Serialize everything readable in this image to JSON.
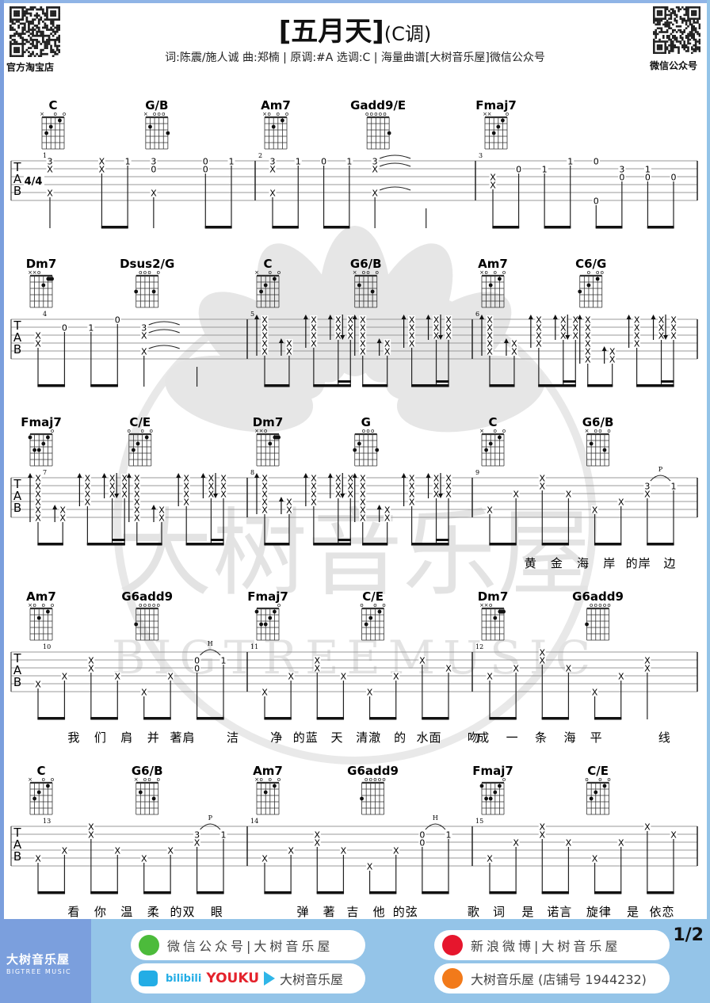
{
  "header": {
    "title": "[五月天]",
    "key_label": "(C调)",
    "subtitle": "词:陈震/施人诚 曲:郑楠 | 原调:#A  选调:C | 海量曲谱[大树音乐屋]微信公众号",
    "qr_left_label": "官方淘宝店",
    "qr_right_label": "微信公众号"
  },
  "watermark": {
    "cn": "大树音乐屋",
    "en": "BIGTREEMUSIC"
  },
  "time_signature": "4/4",
  "tab_clef": [
    "T",
    "A",
    "B"
  ],
  "chord_shapes": {
    "C": {
      "markers": [
        "x",
        "",
        "",
        "o",
        "",
        "o"
      ],
      "dots": [
        [
          5,
          3
        ],
        [
          4,
          2
        ],
        [
          2,
          1
        ]
      ]
    },
    "G/B": {
      "markers": [
        "x",
        "",
        "o",
        "o",
        "o",
        ""
      ],
      "dots": [
        [
          5,
          2
        ],
        [
          1,
          3
        ]
      ]
    },
    "Am7": {
      "markers": [
        "x",
        "o",
        "",
        "o",
        "",
        "o"
      ],
      "dots": [
        [
          4,
          2
        ],
        [
          2,
          1
        ]
      ]
    },
    "Gadd9/E": {
      "markers": [
        "o",
        "o",
        "o",
        "o",
        "o",
        ""
      ],
      "dots": [
        [
          1,
          3
        ]
      ]
    },
    "Fmaj7": {
      "markers": [
        "x",
        "x",
        "",
        "",
        "",
        "o"
      ],
      "dots": [
        [
          4,
          3
        ],
        [
          3,
          2
        ],
        [
          2,
          1
        ]
      ]
    },
    "Fmaj7b": {
      "markers": [
        "",
        "",
        "",
        "",
        "",
        "o"
      ],
      "dots": [
        [
          6,
          1
        ],
        [
          5,
          3
        ],
        [
          4,
          3
        ],
        [
          3,
          2
        ],
        [
          2,
          1
        ]
      ]
    },
    "Dm7": {
      "markers": [
        "x",
        "x",
        "o",
        "",
        "",
        ""
      ],
      "dots": [
        [
          3,
          2
        ]
      ],
      "barre": {
        "fret": 1,
        "from": 2,
        "to": 1
      }
    },
    "Dsus2/G": {
      "markers": [
        "",
        "o",
        "o",
        "o",
        "",
        "o"
      ],
      "dots": [
        [
          6,
          3
        ],
        [
          2,
          3
        ]
      ]
    },
    "G6/B": {
      "markers": [
        "x",
        "",
        "o",
        "o",
        "",
        "o"
      ],
      "dots": [
        [
          5,
          2
        ],
        [
          2,
          3
        ]
      ]
    },
    "C6/G": {
      "markers": [
        "",
        "",
        "o",
        "",
        "o",
        "o"
      ],
      "dots": [
        [
          6,
          3
        ],
        [
          4,
          2
        ],
        [
          2,
          1
        ]
      ]
    },
    "C/E": {
      "markers": [
        "o",
        "",
        "",
        "o",
        "",
        "o"
      ],
      "dots": [
        [
          5,
          3
        ],
        [
          4,
          2
        ],
        [
          2,
          1
        ]
      ]
    },
    "G": {
      "markers": [
        "",
        "",
        "o",
        "o",
        "o",
        ""
      ],
      "dots": [
        [
          6,
          3
        ],
        [
          5,
          2
        ],
        [
          1,
          3
        ]
      ]
    },
    "G6add9": {
      "markers": [
        "",
        "o",
        "o",
        "o",
        "o",
        "o"
      ],
      "dots": [
        [
          6,
          3
        ]
      ]
    }
  },
  "chords": [
    {
      "m": 1,
      "t": 0,
      "name": "C",
      "shape": "C"
    },
    {
      "m": 1,
      "t": 4,
      "name": "G/B",
      "shape": "G/B"
    },
    {
      "m": 2,
      "t": 0,
      "name": "Am7",
      "shape": "Am7"
    },
    {
      "m": 2,
      "t": 4,
      "name": "Gadd9/E",
      "shape": "Gadd9/E"
    },
    {
      "m": 3,
      "t": 0,
      "name": "Fmaj7",
      "shape": "Fmaj7"
    },
    {
      "m": 4,
      "t": 0,
      "name": "Dm7",
      "shape": "Dm7"
    },
    {
      "m": 4,
      "t": 4,
      "name": "Dsus2/G",
      "shape": "Dsus2/G"
    },
    {
      "m": 5,
      "t": 0,
      "name": "C",
      "shape": "C"
    },
    {
      "m": 5,
      "t": 4,
      "name": "G6/B",
      "shape": "G6/B"
    },
    {
      "m": 6,
      "t": 0,
      "name": "Am7",
      "shape": "Am7"
    },
    {
      "m": 6,
      "t": 4,
      "name": "C6/G",
      "shape": "C6/G"
    },
    {
      "m": 7,
      "t": 0,
      "name": "Fmaj7",
      "shape": "Fmaj7b"
    },
    {
      "m": 7,
      "t": 4,
      "name": "C/E",
      "shape": "C/E"
    },
    {
      "m": 8,
      "t": 0,
      "name": "Dm7",
      "shape": "Dm7"
    },
    {
      "m": 8,
      "t": 4,
      "name": "G",
      "shape": "G"
    },
    {
      "m": 9,
      "t": 0,
      "name": "C",
      "shape": "C"
    },
    {
      "m": 9,
      "t": 4,
      "name": "G6/B",
      "shape": "G6/B"
    },
    {
      "m": 10,
      "t": 0,
      "name": "Am7",
      "shape": "Am7"
    },
    {
      "m": 10,
      "t": 4,
      "name": "G6add9",
      "shape": "G6add9"
    },
    {
      "m": 11,
      "t": 0,
      "name": "Fmaj7",
      "shape": "Fmaj7b"
    },
    {
      "m": 11,
      "t": 4,
      "name": "C/E",
      "shape": "C/E"
    },
    {
      "m": 12,
      "t": 0,
      "name": "Dm7",
      "shape": "Dm7"
    },
    {
      "m": 12,
      "t": 4,
      "name": "G6add9",
      "shape": "G6add9"
    },
    {
      "m": 13,
      "t": 0,
      "name": "C",
      "shape": "C"
    },
    {
      "m": 13,
      "t": 4,
      "name": "G6/B",
      "shape": "G6/B"
    },
    {
      "m": 14,
      "t": 0,
      "name": "Am7",
      "shape": "Am7"
    },
    {
      "m": 14,
      "t": 4,
      "name": "G6add9",
      "shape": "G6add9"
    },
    {
      "m": 15,
      "t": 0,
      "name": "Fmaj7",
      "shape": "Fmaj7b"
    },
    {
      "m": 15,
      "t": 4,
      "name": "C/E",
      "shape": "C/E"
    }
  ],
  "strum_pattern": [
    {
      "t": 0,
      "arrow": "up",
      "strings": "full"
    },
    {
      "t": 1,
      "arrow": "up",
      "strings": "bass"
    },
    {
      "t": 2,
      "arrow": "up",
      "strings": [
        1,
        4
      ]
    },
    {
      "t": 3,
      "arrow": "up",
      "strings": [
        1,
        3
      ]
    },
    {
      "t": 3.5,
      "arrow": "down",
      "strings": [
        1,
        3
      ]
    }
  ],
  "measures": [
    {
      "num": "1",
      "events": [
        {
          "t": 0,
          "n": {
            "1": "3",
            "2": "X",
            "5": "X"
          }
        },
        {
          "t": 2,
          "n": {
            "1": "X",
            "2": "X"
          }
        },
        {
          "t": 3,
          "n": {
            "1": "1"
          }
        },
        {
          "t": 4,
          "n": {
            "1": "3",
            "2": "0",
            "5": "X"
          }
        },
        {
          "t": 6,
          "n": {
            "1": "0",
            "2": "0"
          }
        },
        {
          "t": 7,
          "n": {
            "1": "1"
          }
        }
      ]
    },
    {
      "num": "2",
      "events": [
        {
          "t": 0,
          "n": {
            "1": "3",
            "2": "X",
            "5": "X"
          }
        },
        {
          "t": 1,
          "n": {
            "1": "1"
          }
        },
        {
          "t": 2,
          "n": {
            "1": "0"
          }
        },
        {
          "t": 3,
          "n": {
            "1": "1"
          }
        },
        {
          "t": 4,
          "n": {
            "1": "3",
            "2": "X",
            "5": "X"
          },
          "tie": true
        },
        {
          "t": 6,
          "n": {}
        }
      ]
    },
    {
      "num": "3",
      "events": [
        {
          "t": 0,
          "n": {
            "3": "X",
            "4": "X"
          }
        },
        {
          "t": 1,
          "n": {
            "2": "0"
          }
        },
        {
          "t": 2,
          "n": {
            "2": "1"
          }
        },
        {
          "t": 3,
          "n": {
            "1": "1"
          }
        },
        {
          "t": 4,
          "n": {
            "1": "0",
            "6": "0"
          }
        },
        {
          "t": 5,
          "n": {
            "2": "3",
            "3": "0"
          }
        },
        {
          "t": 6,
          "n": {
            "2": "1",
            "3": "0"
          }
        },
        {
          "t": 7,
          "n": {
            "3": "0"
          }
        }
      ]
    },
    {
      "num": "4",
      "events": [
        {
          "t": 0,
          "n": {
            "3": "X",
            "4": "X"
          }
        },
        {
          "t": 1,
          "n": {
            "2": "0"
          }
        },
        {
          "t": 2,
          "n": {
            "2": "1"
          }
        },
        {
          "t": 3,
          "n": {
            "1": "0"
          }
        },
        {
          "t": 4,
          "n": {
            "2": "3",
            "3": "X",
            "5": "X"
          },
          "tie": true
        },
        {
          "t": 6,
          "n": {}
        }
      ]
    },
    {
      "num": "5",
      "strum": [
        {
          "full": [
            1,
            5
          ],
          "bass": [
            4,
            5
          ]
        },
        {
          "full": [
            1,
            5
          ],
          "bass": [
            4,
            5
          ]
        }
      ]
    },
    {
      "num": "6",
      "strum": [
        {
          "full": [
            1,
            5
          ],
          "bass": [
            4,
            5
          ]
        },
        {
          "full": [
            1,
            6
          ],
          "bass": [
            5,
            6
          ]
        }
      ]
    },
    {
      "num": "7",
      "strum": [
        {
          "full": [
            1,
            6
          ],
          "bass": [
            5,
            6
          ]
        },
        {
          "full": [
            1,
            6
          ],
          "bass": [
            5,
            6
          ]
        }
      ]
    },
    {
      "num": "8",
      "strum": [
        {
          "full": [
            1,
            5
          ],
          "bass": [
            4,
            5
          ]
        },
        {
          "full": [
            1,
            6
          ],
          "bass": [
            5,
            6
          ]
        }
      ]
    },
    {
      "num": "9",
      "events": [
        {
          "t": 0,
          "n": {
            "5": "X"
          }
        },
        {
          "t": 1,
          "n": {
            "3": "X"
          }
        },
        {
          "t": 2,
          "n": {
            "1": "X",
            "2": "X"
          }
        },
        {
          "t": 3,
          "n": {
            "3": "X"
          }
        },
        {
          "t": 4,
          "n": {
            "5": "X"
          }
        },
        {
          "t": 5,
          "n": {
            "4": "X"
          }
        },
        {
          "t": 6,
          "n": {
            "2": "3",
            "3": "X"
          },
          "slur": "P"
        },
        {
          "t": 7,
          "n": {
            "2": "1"
          }
        }
      ]
    },
    {
      "num": "10",
      "events": [
        {
          "t": 0,
          "n": {
            "5": "X"
          }
        },
        {
          "t": 1,
          "n": {
            "4": "X"
          }
        },
        {
          "t": 2,
          "n": {
            "2": "X",
            "3": "X"
          }
        },
        {
          "t": 3,
          "n": {
            "4": "X"
          }
        },
        {
          "t": 4,
          "n": {
            "6": "X"
          }
        },
        {
          "t": 5,
          "n": {
            "4": "X"
          }
        },
        {
          "t": 6,
          "n": {
            "2": "0",
            "3": "0"
          },
          "slur": "H"
        },
        {
          "t": 7,
          "n": {
            "2": "1"
          }
        }
      ]
    },
    {
      "num": "11",
      "events": [
        {
          "t": 0,
          "n": {
            "6": "X"
          }
        },
        {
          "t": 1,
          "n": {
            "4": "X"
          }
        },
        {
          "t": 2,
          "n": {
            "2": "X",
            "3": "X"
          }
        },
        {
          "t": 3,
          "n": {
            "4": "X"
          }
        },
        {
          "t": 4,
          "n": {
            "6": "X"
          }
        },
        {
          "t": 5,
          "n": {
            "4": "X"
          }
        },
        {
          "t": 6,
          "n": {
            "2": "X"
          }
        },
        {
          "t": 7,
          "n": {
            "3": "X"
          }
        }
      ]
    },
    {
      "num": "12",
      "events": [
        {
          "t": 0,
          "n": {
            "4": "X"
          }
        },
        {
          "t": 1,
          "n": {
            "3": "X"
          }
        },
        {
          "t": 2,
          "n": {
            "1": "X",
            "2": "X"
          }
        },
        {
          "t": 3,
          "n": {
            "3": "X"
          }
        },
        {
          "t": 4,
          "n": {
            "6": "X"
          }
        },
        {
          "t": 5,
          "n": {
            "4": "X"
          }
        },
        {
          "t": 6,
          "n": {
            "2": "X",
            "3": "X"
          }
        }
      ]
    },
    {
      "num": "13",
      "events": [
        {
          "t": 0,
          "n": {
            "5": "X"
          }
        },
        {
          "t": 1,
          "n": {
            "4": "X"
          }
        },
        {
          "t": 2,
          "n": {
            "1": "X",
            "2": "X"
          }
        },
        {
          "t": 3,
          "n": {
            "4": "X"
          }
        },
        {
          "t": 4,
          "n": {
            "5": "X"
          }
        },
        {
          "t": 5,
          "n": {
            "4": "X"
          }
        },
        {
          "t": 6,
          "n": {
            "2": "3",
            "3": "X"
          },
          "slur": "P"
        },
        {
          "t": 7,
          "n": {
            "2": "1"
          }
        }
      ]
    },
    {
      "num": "14",
      "events": [
        {
          "t": 0,
          "n": {
            "5": "X"
          }
        },
        {
          "t": 1,
          "n": {
            "4": "X"
          }
        },
        {
          "t": 2,
          "n": {
            "2": "X",
            "3": "X"
          }
        },
        {
          "t": 3,
          "n": {
            "4": "X"
          }
        },
        {
          "t": 4,
          "n": {
            "6": "X"
          }
        },
        {
          "t": 5,
          "n": {
            "4": "X"
          }
        },
        {
          "t": 6,
          "n": {
            "2": "0",
            "3": "0"
          },
          "slur": "H"
        },
        {
          "t": 7,
          "n": {
            "2": "1"
          }
        }
      ]
    },
    {
      "num": "15",
      "events": [
        {
          "t": 0,
          "n": {
            "5": "X"
          }
        },
        {
          "t": 1,
          "n": {
            "3": "X"
          }
        },
        {
          "t": 2,
          "n": {
            "1": "X",
            "2": "X"
          }
        },
        {
          "t": 3,
          "n": {
            "3": "X"
          }
        },
        {
          "t": 4,
          "n": {
            "5": "X"
          }
        },
        {
          "t": 5,
          "n": {
            "3": "X"
          }
        },
        {
          "t": 6,
          "n": {
            "1": "X"
          }
        },
        {
          "t": 7,
          "n": {
            "2": "X"
          }
        }
      ]
    }
  ],
  "lyrics": [
    {
      "m": 9,
      "t": 1.2,
      "text": "黄"
    },
    {
      "m": 9,
      "t": 2.2,
      "text": "金"
    },
    {
      "m": 9,
      "t": 3.2,
      "text": "海"
    },
    {
      "m": 9,
      "t": 4.2,
      "text": "岸"
    },
    {
      "m": 9,
      "t": 5.3,
      "text": "的岸"
    },
    {
      "m": 9,
      "t": 6.5,
      "text": "边"
    },
    {
      "m": 10,
      "t": 1,
      "text": "我"
    },
    {
      "m": 10,
      "t": 2,
      "text": "们"
    },
    {
      "m": 10,
      "t": 3,
      "text": "肩"
    },
    {
      "m": 10,
      "t": 4,
      "text": "并"
    },
    {
      "m": 10,
      "t": 5.1,
      "text": "著肩"
    },
    {
      "m": 10,
      "t": 7,
      "text": "洁"
    },
    {
      "m": 11,
      "t": 0.1,
      "text": "净"
    },
    {
      "m": 11,
      "t": 1.2,
      "text": "的蓝"
    },
    {
      "m": 11,
      "t": 2.4,
      "text": "天"
    },
    {
      "m": 11,
      "t": 3.6,
      "text": "清澈"
    },
    {
      "m": 11,
      "t": 4.8,
      "text": "的"
    },
    {
      "m": 11,
      "t": 5.9,
      "text": "水面"
    },
    {
      "m": 11,
      "t": 7.6,
      "text": "吻"
    },
    {
      "m": 12,
      "t": -0.6,
      "text": "成"
    },
    {
      "m": 12,
      "t": 0.5,
      "text": "一"
    },
    {
      "m": 12,
      "t": 1.6,
      "text": "条"
    },
    {
      "m": 12,
      "t": 2.7,
      "text": "海"
    },
    {
      "m": 12,
      "t": 3.7,
      "text": "平"
    },
    {
      "m": 12,
      "t": 6.3,
      "text": "线"
    },
    {
      "m": 13,
      "t": 1,
      "text": "看"
    },
    {
      "m": 13,
      "t": 2,
      "text": "你"
    },
    {
      "m": 13,
      "t": 3,
      "text": "温"
    },
    {
      "m": 13,
      "t": 4,
      "text": "柔"
    },
    {
      "m": 13,
      "t": 5.1,
      "text": "的双"
    },
    {
      "m": 13,
      "t": 6.4,
      "text": "眼"
    },
    {
      "m": 14,
      "t": 1.1,
      "text": "弹"
    },
    {
      "m": 14,
      "t": 2.1,
      "text": "著"
    },
    {
      "m": 14,
      "t": 3,
      "text": "吉"
    },
    {
      "m": 14,
      "t": 4,
      "text": "他"
    },
    {
      "m": 14,
      "t": 5,
      "text": "的弦"
    },
    {
      "m": 14,
      "t": 7.6,
      "text": "歌"
    },
    {
      "m": 15,
      "t": 0,
      "text": "词"
    },
    {
      "m": 15,
      "t": 1.1,
      "text": "是"
    },
    {
      "m": 15,
      "t": 2.3,
      "text": "诺言"
    },
    {
      "m": 15,
      "t": 3.8,
      "text": "旋律"
    },
    {
      "m": 15,
      "t": 5.1,
      "text": "是"
    },
    {
      "m": 15,
      "t": 6.2,
      "text": "依恋"
    }
  ],
  "footer": {
    "brand_cn": "大树音乐屋",
    "brand_en": "BIGTREE MUSIC",
    "wechat": "微信公众号|大树音乐屋",
    "weibo": "新浪微博|大树音乐屋",
    "video_bili": "bilibili",
    "video_youku": "YOUKU",
    "video_name": "大树音乐屋",
    "taobao": "大树音乐屋 (店铺号 1944232)",
    "page": "1/2"
  },
  "colors": {
    "accent_blue": "#7b9fdd",
    "footer_blue": "#94c4e8",
    "wechat_green": "#4cbb3b",
    "weibo_red": "#e6162d",
    "taobao_orange": "#f27a1a",
    "youku_red": "#e4232c",
    "bili_blue": "#23ade5"
  }
}
